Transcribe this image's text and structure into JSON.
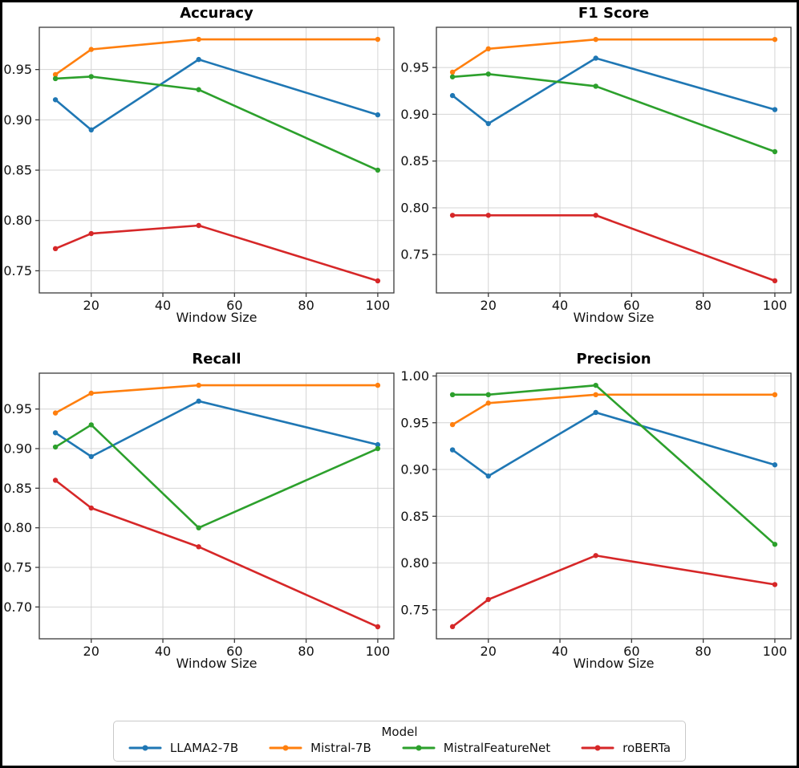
{
  "figure": {
    "background": "#ffffff",
    "border_color": "#000000",
    "grid_color": "#d4d4d4",
    "spine_color": "#3a3a3a",
    "tick_label_color": "#111111"
  },
  "legend": {
    "title": "Model"
  },
  "models": [
    {
      "name": "LLAMA2-7B",
      "color": "#1f77b4"
    },
    {
      "name": "Mistral-7B",
      "color": "#ff7f0e"
    },
    {
      "name": "MistralFeatureNet",
      "color": "#2ca02c"
    },
    {
      "name": "roBERTa",
      "color": "#d62728"
    }
  ],
  "chart_data": [
    {
      "type": "line",
      "title": "Accuracy",
      "xlabel": "Window Size",
      "ylabel": "",
      "x": [
        10,
        20,
        50,
        100
      ],
      "xticks": [
        20,
        40,
        60,
        80,
        100
      ],
      "xlim": [
        5.5,
        104.5
      ],
      "yticks": [
        0.75,
        0.8,
        0.85,
        0.9,
        0.95
      ],
      "ylim": [
        0.728,
        0.992
      ],
      "grid": true,
      "series": [
        {
          "name": "LLAMA2-7B",
          "values": [
            0.92,
            0.89,
            0.96,
            0.905
          ]
        },
        {
          "name": "Mistral-7B",
          "values": [
            0.945,
            0.97,
            0.98,
            0.98
          ]
        },
        {
          "name": "MistralFeatureNet",
          "values": [
            0.941,
            0.943,
            0.93,
            0.85
          ]
        },
        {
          "name": "roBERTa",
          "values": [
            0.772,
            0.787,
            0.795,
            0.74
          ]
        }
      ]
    },
    {
      "type": "line",
      "title": "F1 Score",
      "xlabel": "Window Size",
      "ylabel": "",
      "x": [
        10,
        20,
        50,
        100
      ],
      "xticks": [
        20,
        40,
        60,
        80,
        100
      ],
      "xlim": [
        5.5,
        104.5
      ],
      "yticks": [
        0.75,
        0.8,
        0.85,
        0.9,
        0.95
      ],
      "ylim": [
        0.709,
        0.993
      ],
      "grid": true,
      "series": [
        {
          "name": "LLAMA2-7B",
          "values": [
            0.92,
            0.89,
            0.96,
            0.905
          ]
        },
        {
          "name": "Mistral-7B",
          "values": [
            0.945,
            0.97,
            0.98,
            0.98
          ]
        },
        {
          "name": "MistralFeatureNet",
          "values": [
            0.94,
            0.943,
            0.93,
            0.86
          ]
        },
        {
          "name": "roBERTa",
          "values": [
            0.792,
            0.792,
            0.792,
            0.722
          ]
        }
      ]
    },
    {
      "type": "line",
      "title": "Recall",
      "xlabel": "Window Size",
      "ylabel": "",
      "x": [
        10,
        20,
        50,
        100
      ],
      "xticks": [
        20,
        40,
        60,
        80,
        100
      ],
      "xlim": [
        5.5,
        104.5
      ],
      "yticks": [
        0.7,
        0.75,
        0.8,
        0.85,
        0.9,
        0.95
      ],
      "ylim": [
        0.6598,
        0.9953
      ],
      "grid": true,
      "series": [
        {
          "name": "LLAMA2-7B",
          "values": [
            0.92,
            0.89,
            0.96,
            0.905
          ]
        },
        {
          "name": "Mistral-7B",
          "values": [
            0.945,
            0.97,
            0.98,
            0.98
          ]
        },
        {
          "name": "MistralFeatureNet",
          "values": [
            0.902,
            0.93,
            0.8,
            0.9
          ]
        },
        {
          "name": "roBERTa",
          "values": [
            0.86,
            0.825,
            0.776,
            0.675
          ]
        }
      ]
    },
    {
      "type": "line",
      "title": "Precision",
      "xlabel": "Window Size",
      "ylabel": "",
      "x": [
        10,
        20,
        50,
        100
      ],
      "xticks": [
        20,
        40,
        60,
        80,
        100
      ],
      "xlim": [
        5.5,
        104.5
      ],
      "yticks": [
        0.75,
        0.8,
        0.85,
        0.9,
        0.95,
        1.0
      ],
      "ylim": [
        0.719,
        1.003
      ],
      "grid": true,
      "series": [
        {
          "name": "LLAMA2-7B",
          "values": [
            0.921,
            0.893,
            0.961,
            0.905
          ]
        },
        {
          "name": "Mistral-7B",
          "values": [
            0.948,
            0.971,
            0.98,
            0.98
          ]
        },
        {
          "name": "MistralFeatureNet",
          "values": [
            0.98,
            0.98,
            0.99,
            0.82
          ]
        },
        {
          "name": "roBERTa",
          "values": [
            0.732,
            0.761,
            0.808,
            0.777
          ]
        }
      ]
    }
  ]
}
